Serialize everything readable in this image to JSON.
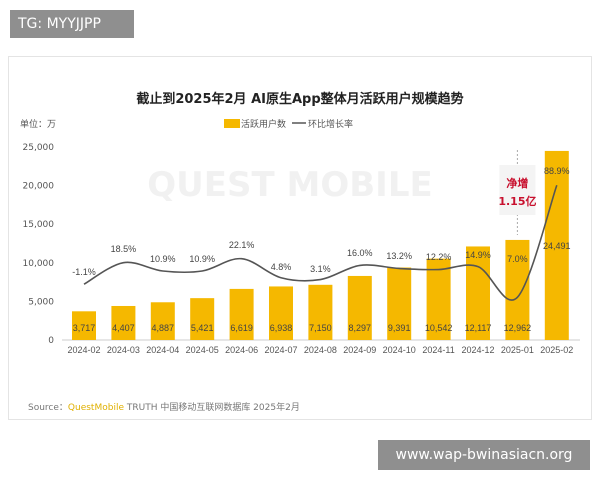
{
  "overlay": {
    "top_tag": "TG: MYYJJPP",
    "bottom_url": "www.wap-bwinasiacn.org"
  },
  "chart_data": {
    "type": "bar",
    "title": "截止到2025年2月 AI原生App整体月活跃用户规模趋势",
    "unit_label": "单位：万",
    "watermark": "QUEST MOBILE",
    "categories": [
      "2024-02",
      "2024-03",
      "2024-04",
      "2024-05",
      "2024-06",
      "2024-07",
      "2024-08",
      "2024-09",
      "2024-10",
      "2024-11",
      "2024-12",
      "2025-01",
      "2025-02"
    ],
    "series": [
      {
        "name": "活跃用户数",
        "type": "bar",
        "color": "#f5b800",
        "values": [
          3717,
          4407,
          4887,
          5421,
          6619,
          6938,
          7150,
          8297,
          9391,
          10542,
          12117,
          12962,
          24491
        ],
        "labels": [
          "3,717",
          "4,407",
          "4,887",
          "5,421",
          "6,619",
          "6,938",
          "7,150",
          "8,297",
          "9,391",
          "10,542",
          "12,117",
          "12,962",
          "24,491"
        ]
      },
      {
        "name": "环比增长率",
        "type": "line",
        "color": "#555555",
        "values": [
          -1.1,
          18.5,
          10.9,
          10.9,
          22.1,
          4.8,
          3.1,
          16.0,
          13.2,
          12.2,
          14.9,
          7.0,
          88.9
        ],
        "labels": [
          "-1.1%",
          "18.5%",
          "10.9%",
          "10.9%",
          "22.1%",
          "4.8%",
          "3.1%",
          "16.0%",
          "13.2%",
          "12.2%",
          "14.9%",
          "7.0%",
          "88.9%"
        ]
      }
    ],
    "yticks": [
      "0",
      "5,000",
      "10,000",
      "15,000",
      "20,000",
      "25,000"
    ],
    "ylim": [
      0,
      25000
    ],
    "annotation": {
      "line1": "净增",
      "line2": "1.15亿",
      "color": "#c8102e"
    },
    "legend_placement": "top-center",
    "grid": false,
    "source": {
      "prefix": "Source：",
      "brand": "QuestMobile",
      "rest": " TRUTH 中国移动互联网数据库 2025年2月",
      "brand_color": "#e0b000"
    }
  }
}
